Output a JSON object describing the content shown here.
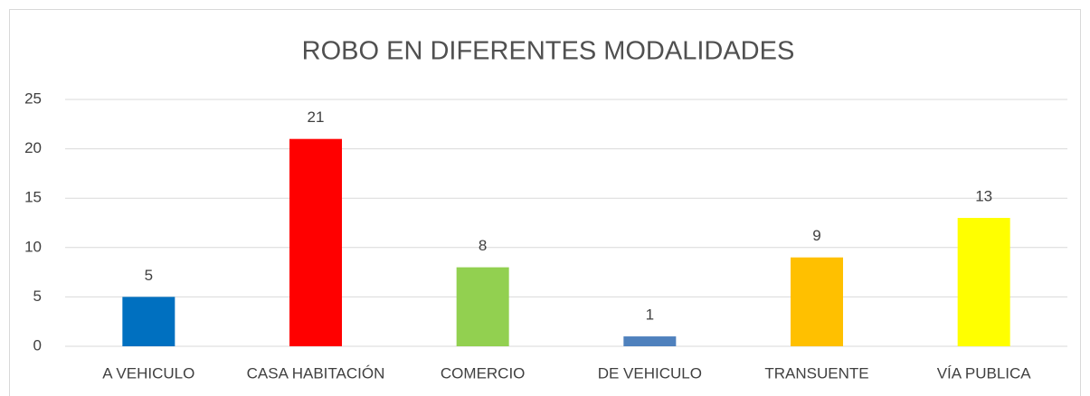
{
  "chart_data": {
    "type": "bar",
    "title": "ROBO EN DIFERENTES MODALIDADES",
    "categories": [
      "A VEHICULO",
      "CASA HABITACIÓN",
      "COMERCIO",
      "DE VEHICULO",
      "TRANSUENTE",
      "VÍA PUBLICA"
    ],
    "values": [
      5,
      21,
      8,
      1,
      9,
      13
    ],
    "colors": [
      "#0070c0",
      "#ff0000",
      "#92d050",
      "#4f81bd",
      "#ffc000",
      "#ffff00"
    ],
    "ylim": [
      0,
      25
    ],
    "yticks": [
      0,
      5,
      10,
      15,
      20,
      25
    ],
    "grid": true
  }
}
